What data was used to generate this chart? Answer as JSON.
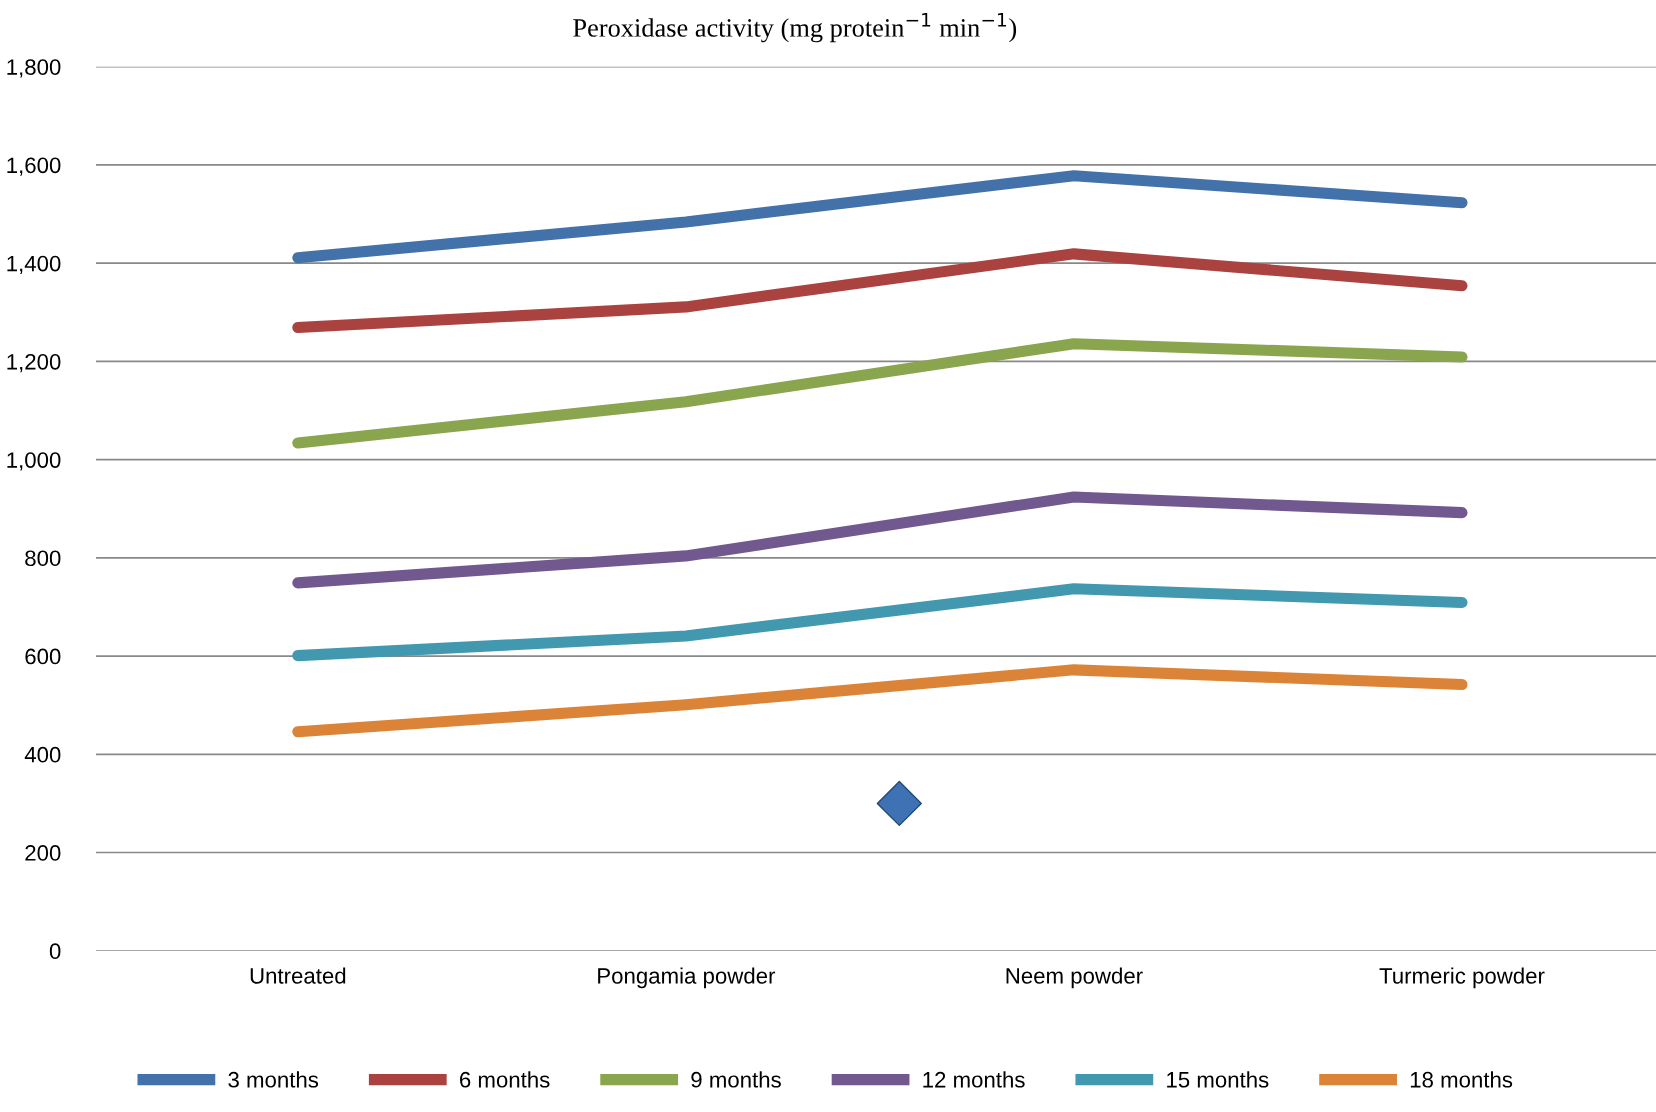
{
  "chart_data": {
    "type": "line",
    "title": "Peroxidase activity (mg protein$^{−1}$ min$^{−1}$)",
    "categories": [
      "Untreated",
      "Pongamia powder",
      "Neem powder",
      "Turmeric powder"
    ],
    "series": [
      {
        "name": "3 months",
        "color": "#4372aa",
        "values": [
          1411,
          1484,
          1578,
          1523
        ]
      },
      {
        "name": "6 months",
        "color": "#aa4240",
        "values": [
          1269,
          1311,
          1419,
          1354
        ]
      },
      {
        "name": "9 months",
        "color": "#89a54e",
        "values": [
          1034,
          1118,
          1236,
          1209
        ]
      },
      {
        "name": "12 months",
        "color": "#71588f",
        "values": [
          749,
          804,
          924,
          892
        ]
      },
      {
        "name": "15 months",
        "color": "#4298af",
        "values": [
          601,
          641,
          737,
          709
        ]
      },
      {
        "name": "18 months",
        "color": "#db8438",
        "values": [
          446,
          501,
          572,
          542
        ]
      }
    ],
    "ylim": [
      0,
      1800
    ],
    "yticks": [
      {
        "value": 0,
        "label": "0"
      },
      {
        "value": 200,
        "label": "200"
      },
      {
        "value": 400,
        "label": "400"
      },
      {
        "value": 600,
        "label": "600"
      },
      {
        "value": 800,
        "label": "800"
      },
      {
        "value": 1000,
        "label": "1,000"
      },
      {
        "value": 1200,
        "label": "1,200"
      },
      {
        "value": 1400,
        "label": "1,400"
      },
      {
        "value": 1600,
        "label": "1,600"
      },
      {
        "value": 1800,
        "label": "1,800"
      }
    ],
    "grid": "y",
    "legend": "bottom",
    "line_style": "solid"
  }
}
